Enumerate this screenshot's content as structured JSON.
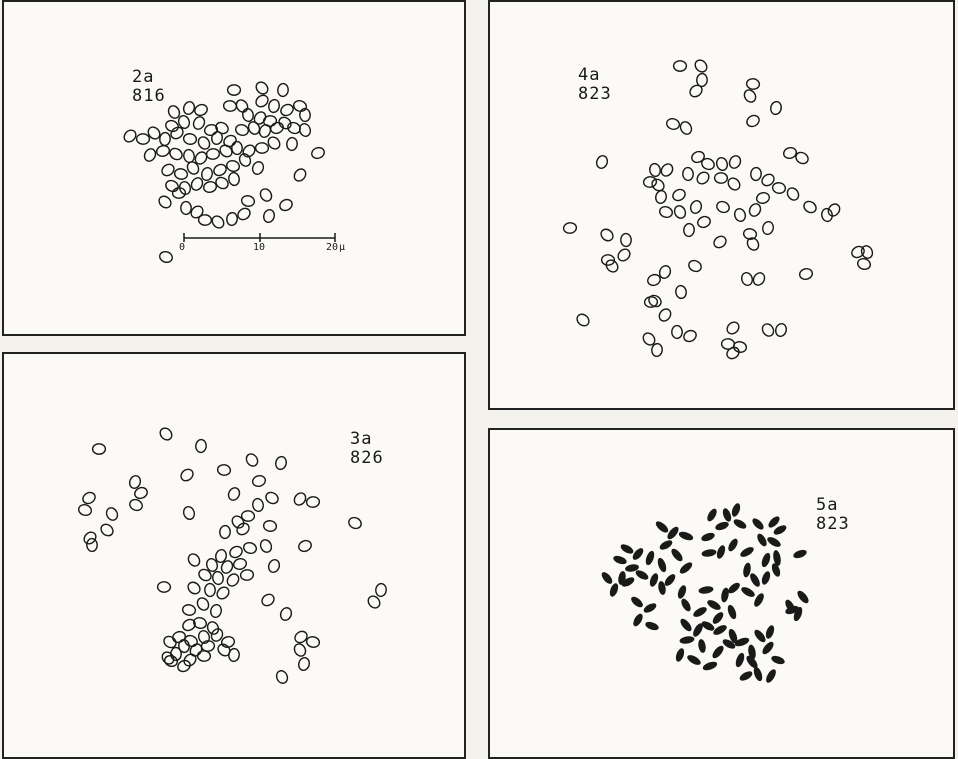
{
  "panels": [
    {
      "id": "2a",
      "label": "2a",
      "number": "816",
      "style": "outline"
    },
    {
      "id": "3a",
      "label": "3a",
      "number": "826",
      "style": "outline"
    },
    {
      "id": "4a",
      "label": "4a",
      "number": "823",
      "style": "outline"
    },
    {
      "id": "5a",
      "label": "5a",
      "number": "823",
      "style": "filled"
    }
  ],
  "scale_bar": {
    "ticks": [
      "0",
      "10",
      "20"
    ],
    "unit": "μ"
  },
  "colors": {
    "ink": "#1a1a1a",
    "paper": "#fbfaf6",
    "frame": "#222222"
  }
}
